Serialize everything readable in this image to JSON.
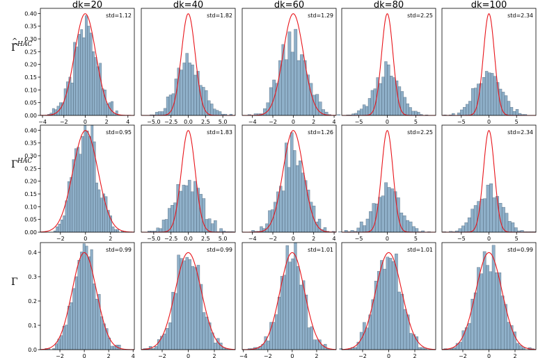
{
  "colors": {
    "bar_fill": "#8fb0c9",
    "bar_edge": "#2b3f52",
    "curve": "#e8141a",
    "axis": "#000000"
  },
  "chart_data": {
    "type": "histogram_grid",
    "columns": [
      "dk=20",
      "dk=40",
      "dk=60",
      "dk=80",
      "dk=100"
    ],
    "rows": [
      {
        "label": "Γ̂^HAC",
        "label_main": "Γ̂",
        "label_sup": "HAC"
      },
      {
        "label": "Γ^HAC",
        "label_main": "Γ",
        "label_sup": "HAC"
      },
      {
        "label": "Γ",
        "label_main": "Γ",
        "label_sup": ""
      }
    ],
    "overlay": "standard normal density N(0,1)",
    "panels": [
      [
        {
          "std": 1.12,
          "std_label": "std=1.12",
          "xlim": [
            -4.2,
            4.6
          ],
          "ylim": [
            0,
            0.42
          ],
          "xticks": [
            -4,
            -2,
            0,
            2,
            4
          ],
          "xtick_labels": [
            "−4",
            "−2",
            "0",
            "2",
            "4"
          ],
          "yticks": [
            0,
            0.05,
            0.1,
            0.15,
            0.2,
            0.25,
            0.3,
            0.35,
            0.4
          ],
          "ytick_labels": [
            "0.00",
            "0.05",
            "0.10",
            "0.15",
            "0.20",
            "0.25",
            "0.30",
            "0.35",
            "0.40"
          ]
        },
        {
          "std": 1.82,
          "std_label": "std=1.82",
          "xlim": [
            -6.8,
            6.8
          ],
          "ylim": [
            0,
            0.42
          ],
          "xticks": [
            -5,
            -2.5,
            0,
            2.5,
            5
          ],
          "xtick_labels": [
            "−5.0",
            "−2.5",
            "0.0",
            "2.5",
            "5.0"
          ]
        },
        {
          "std": 1.29,
          "std_label": "std=1.29",
          "xlim": [
            -5.0,
            4.2
          ],
          "ylim": [
            0,
            0.42
          ],
          "xticks": [
            -4,
            -2,
            0,
            2,
            4
          ],
          "xtick_labels": [
            "−4",
            "−2",
            "0",
            "2",
            "4"
          ]
        },
        {
          "std": 2.25,
          "std_label": "std=2.25",
          "xlim": [
            -8.0,
            8.5
          ],
          "ylim": [
            0,
            0.42
          ],
          "xticks": [
            -5,
            0,
            5
          ],
          "xtick_labels": [
            "−5",
            "0",
            "5"
          ]
        },
        {
          "std": 2.34,
          "std_label": "std=2.34",
          "xlim": [
            -8.5,
            8.5
          ],
          "ylim": [
            0,
            0.42
          ],
          "xticks": [
            -5,
            0,
            5
          ],
          "xtick_labels": [
            "−5",
            "0",
            "5"
          ]
        }
      ],
      [
        {
          "std": 0.95,
          "std_label": "std=0.95",
          "xlim": [
            -3.6,
            3.9
          ],
          "ylim": [
            0,
            0.42
          ],
          "xticks": [
            -2,
            0,
            2
          ],
          "xtick_labels": [
            "−2",
            "0",
            "2"
          ],
          "yticks": [
            0,
            0.05,
            0.1,
            0.15,
            0.2,
            0.25,
            0.3,
            0.35,
            0.4
          ],
          "ytick_labels": [
            "0.00",
            "0.05",
            "0.10",
            "0.15",
            "0.20",
            "0.25",
            "0.30",
            "0.35",
            "0.40"
          ]
        },
        {
          "std": 1.83,
          "std_label": "std=1.83",
          "xlim": [
            -6.8,
            6.8
          ],
          "ylim": [
            0,
            0.42
          ],
          "xticks": [
            -5,
            -2.5,
            0,
            2.5,
            5
          ],
          "xtick_labels": [
            "−5.0",
            "−2.5",
            "0.0",
            "2.5",
            "5.0"
          ]
        },
        {
          "std": 1.26,
          "std_label": "std=1.26",
          "xlim": [
            -5.0,
            4.2
          ],
          "ylim": [
            0,
            0.42
          ],
          "xticks": [
            -4,
            -2,
            0,
            2,
            4
          ],
          "xtick_labels": [
            "−4",
            "−2",
            "0",
            "2",
            "4"
          ]
        },
        {
          "std": 2.25,
          "std_label": "std=2.25",
          "xlim": [
            -8.0,
            8.5
          ],
          "ylim": [
            0,
            0.42
          ],
          "xticks": [
            -5,
            0,
            5
          ],
          "xtick_labels": [
            "−5",
            "0",
            "5"
          ]
        },
        {
          "std": 2.34,
          "std_label": "std=2.34",
          "xlim": [
            -8.5,
            8.5
          ],
          "ylim": [
            0,
            0.42
          ],
          "xticks": [
            -5,
            0,
            5
          ],
          "xtick_labels": [
            "−5",
            "0",
            "5"
          ]
        }
      ],
      [
        {
          "std": 0.99,
          "std_label": "std=0.99",
          "xlim": [
            -3.6,
            4.1
          ],
          "ylim": [
            0,
            0.44
          ],
          "xticks": [
            -2,
            0,
            2,
            4
          ],
          "xtick_labels": [
            "−2",
            "0",
            "2",
            "4"
          ],
          "yticks": [
            0,
            0.1,
            0.2,
            0.3,
            0.4
          ],
          "ytick_labels": [
            "0.0",
            "0.1",
            "0.2",
            "0.3",
            "0.4"
          ]
        },
        {
          "std": 0.99,
          "std_label": "std=0.99",
          "xlim": [
            -3.6,
            3.6
          ],
          "ylim": [
            0,
            0.44
          ],
          "xticks": [
            -2,
            0,
            2
          ],
          "xtick_labels": [
            "−2",
            "0",
            "2"
          ]
        },
        {
          "std": 1.01,
          "std_label": "std=1.01",
          "xlim": [
            -4.1,
            3.6
          ],
          "ylim": [
            0,
            0.44
          ],
          "xticks": [
            -4,
            -2,
            0,
            2
          ],
          "xtick_labels": [
            "−4",
            "−2",
            "0",
            "2"
          ]
        },
        {
          "std": 1.01,
          "std_label": "std=1.01",
          "xlim": [
            -3.6,
            3.6
          ],
          "ylim": [
            0,
            0.44
          ],
          "xticks": [
            -2,
            0,
            2
          ],
          "xtick_labels": [
            "−2",
            "0",
            "2"
          ]
        },
        {
          "std": 0.99,
          "std_label": "std=0.99",
          "xlim": [
            -3.6,
            3.6
          ],
          "ylim": [
            0,
            0.44
          ],
          "xticks": [
            -2,
            0,
            2
          ],
          "xtick_labels": [
            "−2",
            "0",
            "2"
          ]
        }
      ]
    ]
  }
}
